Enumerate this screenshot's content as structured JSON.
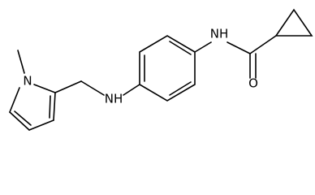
{
  "nodes": [
    {
      "label": "N"
    },
    {
      "label": "NH"
    },
    {
      "label": "NH"
    },
    {
      "label": "O"
    }
  ]
}
